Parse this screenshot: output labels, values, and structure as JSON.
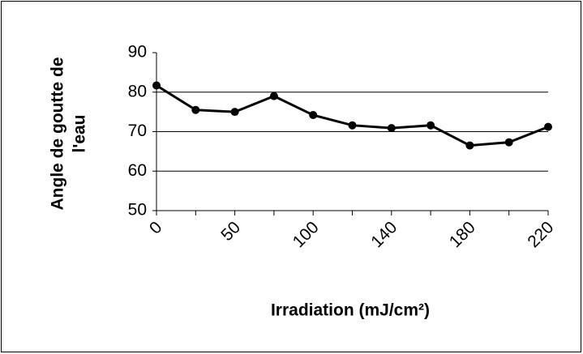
{
  "chart_data": {
    "type": "line",
    "x_label": "Irradiation (mJ/cm²)",
    "y_label": [
      "Angle de goutte de",
      "l'eau"
    ],
    "categories": [
      "0",
      null,
      "50",
      null,
      "100",
      null,
      "140",
      null,
      "180",
      null,
      "220"
    ],
    "series": [
      {
        "name": "Angle",
        "color": "#000000",
        "values": [
          81.7,
          75.5,
          75.0,
          79.0,
          74.2,
          71.6,
          70.9,
          71.6,
          66.5,
          67.3,
          71.2
        ]
      }
    ],
    "ylim": [
      50,
      90
    ],
    "yticks": [
      50,
      60,
      70,
      80,
      90
    ],
    "grid": true
  }
}
